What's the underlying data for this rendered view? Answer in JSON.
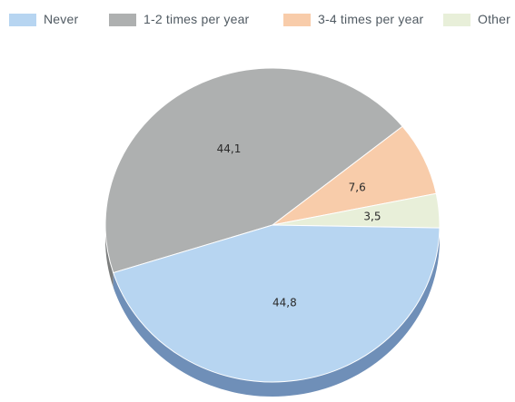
{
  "chart_data": {
    "type": "pie",
    "title": "",
    "legend_position": "top",
    "categories": [
      "Never",
      "1-2 times per year",
      "3-4 times per year",
      "Other"
    ],
    "values": [
      44.8,
      44.1,
      7.6,
      3.5
    ],
    "value_labels": [
      "44,8",
      "44,1",
      "7,6",
      "3,5"
    ],
    "colors": [
      "#b7d5f1",
      "#aeb0b0",
      "#f8ccaa",
      "#e8efd9"
    ],
    "style": "3d"
  }
}
